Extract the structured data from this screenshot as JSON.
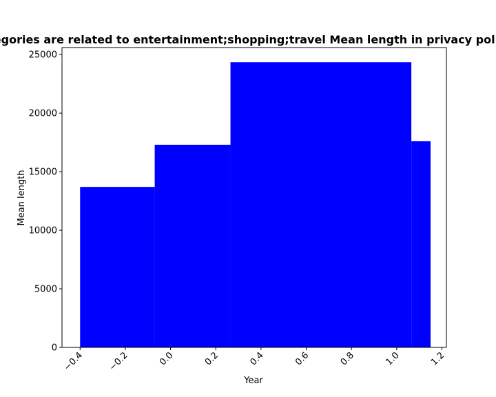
{
  "chart_data": {
    "type": "bar",
    "title": "Categories are related to entertainment;shopping;travel Mean length in privacy policies",
    "xlabel": "Year",
    "ylabel": "Mean length",
    "bar_color": "#0000ff",
    "bars": [
      {
        "x_start": -0.4,
        "x_end": -0.07,
        "value": 13700
      },
      {
        "x_start": -0.07,
        "x_end": 0.265,
        "value": 17300
      },
      {
        "x_start": 0.265,
        "x_end": 1.065,
        "value": 24350
      },
      {
        "x_start": 1.065,
        "x_end": 1.15,
        "value": 17600
      }
    ],
    "xlim": [
      -0.48,
      1.22
    ],
    "ylim": [
      0,
      25600
    ],
    "xticks": [
      -0.4,
      -0.2,
      0.0,
      0.2,
      0.4,
      0.6,
      0.8,
      1.0,
      1.2
    ],
    "xtick_labels": [
      "−0.4",
      "−0.2",
      "0.0",
      "0.2",
      "0.4",
      "0.6",
      "0.8",
      "1.0",
      "1.2"
    ],
    "yticks": [
      0,
      5000,
      10000,
      15000,
      20000,
      25000
    ],
    "ytick_labels": [
      "0",
      "5000",
      "10000",
      "15000",
      "20000",
      "25000"
    ],
    "grid": false,
    "legend": "none"
  }
}
